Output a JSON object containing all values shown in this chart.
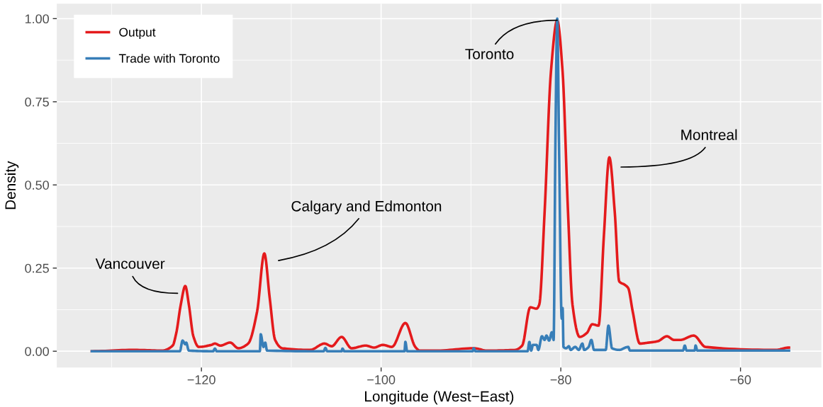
{
  "chart_data": {
    "type": "line",
    "xlabel": "Longitude (West−East)",
    "ylabel": "Density",
    "xlim": [
      -136.1,
      -51.0
    ],
    "ylim": [
      -0.049,
      1.045
    ],
    "xticks": [
      {
        "value": -120,
        "label": "−120"
      },
      {
        "value": -100,
        "label": "−100"
      },
      {
        "value": -80,
        "label": "−80"
      },
      {
        "value": -60,
        "label": "−60"
      }
    ],
    "yticks": [
      {
        "value": 0,
        "label": "0.00"
      },
      {
        "value": 0.25,
        "label": "0.25"
      },
      {
        "value": 0.5,
        "label": "0.50"
      },
      {
        "value": 0.75,
        "label": "0.75"
      },
      {
        "value": 1,
        "label": "1.00"
      }
    ],
    "grid": true,
    "legend": "top left",
    "line_style": "solid",
    "series": [
      {
        "name": "Output",
        "color": "#e41a1c",
        "x": [
          -132.2,
          -127.7,
          -124.4,
          -123.2,
          -122.8,
          -122.3,
          -121.8,
          -121.4,
          -120.9,
          -120.3,
          -118.9,
          -118.5,
          -117.9,
          -116.8,
          -115.9,
          -114.8,
          -113.8,
          -113.0,
          -112.4,
          -111.8,
          -111.0,
          -107.9,
          -106.3,
          -105.5,
          -104.4,
          -103.3,
          -101.7,
          -100.8,
          -99.8,
          -98.8,
          -97.3,
          -96.2,
          -95.7,
          -93.7,
          -89.7,
          -88.2,
          -85.1,
          -84.3,
          -83.4,
          -82.7,
          -82.4,
          -81.8,
          -81.1,
          -80.4,
          -79.8,
          -79.2,
          -78.7,
          -77.9,
          -77.1,
          -76.5,
          -75.8,
          -75.2,
          -74.6,
          -74.0,
          -73.5,
          -72.9,
          -72.5,
          -72.0,
          -71.2,
          -70.2,
          -69.2,
          -68.2,
          -67.4,
          -66.7,
          -65.2,
          -63.9,
          -56.1,
          -54.6
        ],
        "values": [
          0,
          0.004,
          0.002,
          0.017,
          0.055,
          0.14,
          0.196,
          0.14,
          0.045,
          0.013,
          0.019,
          0.023,
          0.017,
          0.026,
          0.009,
          0.023,
          0.12,
          0.294,
          0.16,
          0.034,
          0.009,
          0.004,
          0.023,
          0.015,
          0.043,
          0.009,
          0.017,
          0.011,
          0.019,
          0.013,
          0.085,
          0.013,
          0.002,
          0.002,
          0.009,
          0.002,
          0.004,
          0.017,
          0.132,
          0.128,
          0.14,
          0.42,
          0.84,
          0.995,
          0.84,
          0.42,
          0.14,
          0.043,
          0.055,
          0.081,
          0.077,
          0.35,
          0.583,
          0.42,
          0.21,
          0.2,
          0.19,
          0.12,
          0.023,
          0.026,
          0.03,
          0.045,
          0.034,
          0.034,
          0.047,
          0.013,
          0.004,
          0.011
        ]
      },
      {
        "name": "Trade with Toronto",
        "color": "#377eb8",
        "x": [
          -132.2,
          -122.4,
          -122.1,
          -121.8,
          -121.7,
          -121.4,
          -118.7,
          -118.5,
          -118.3,
          -113.5,
          -113.4,
          -113.1,
          -112.9,
          -112.7,
          -106.4,
          -106.2,
          -106.0,
          -104.4,
          -104.3,
          -104.1,
          -97.4,
          -97.3,
          -97.1,
          -89.8,
          -89.7,
          -89.5,
          -83.7,
          -83.5,
          -83.3,
          -83.1,
          -82.7,
          -82.5,
          -82.1,
          -81.8,
          -81.6,
          -81.3,
          -81.0,
          -80.8,
          -80.6,
          -80.4,
          -80.2,
          -79.9,
          -79.8,
          -79.7,
          -79.4,
          -79.1,
          -78.9,
          -78.4,
          -78.0,
          -77.6,
          -77.4,
          -76.9,
          -76.6,
          -76.3,
          -75.8,
          -75.0,
          -74.7,
          -74.3,
          -73.5,
          -72.5,
          -72.3,
          -66.4,
          -66.2,
          -66.0,
          -65.1,
          -65.0,
          -64.8,
          -54.6
        ],
        "values": [
          0,
          0,
          0.032,
          0.021,
          0.026,
          0.002,
          0,
          0.008,
          0,
          0,
          0.051,
          0.013,
          0.026,
          0.002,
          0,
          0.01,
          0,
          0,
          0.008,
          0,
          0,
          0.028,
          0,
          0,
          0.009,
          0,
          0,
          0.028,
          0.002,
          0.019,
          0.019,
          0.004,
          0.045,
          0.034,
          0.047,
          0.032,
          0.057,
          0.034,
          0.63,
          1.0,
          0.63,
          0.098,
          0.13,
          0.013,
          0.009,
          0.015,
          0.004,
          0.013,
          0.004,
          0.023,
          0.004,
          0.013,
          0.034,
          0.004,
          0.004,
          0.004,
          0.077,
          0.009,
          0.004,
          0.013,
          0.002,
          0.002,
          0.017,
          0.002,
          0.002,
          0.017,
          0.002,
          0.002
        ]
      }
    ],
    "annotations": [
      "Vancouver",
      "Calgary and Edmonton",
      {
        "text": "Toronto",
        "x": -80.4,
        "y": 0.995
      },
      "Montreal"
    ]
  }
}
